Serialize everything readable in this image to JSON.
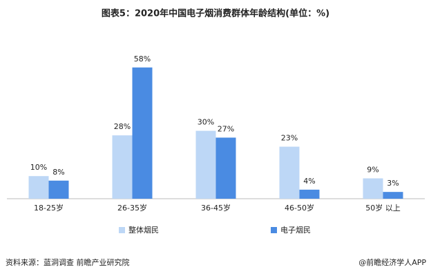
{
  "chart_data": {
    "type": "bar",
    "title": "图表5：2020年中国电子烟消费群体年龄结构(单位：%)",
    "categories": [
      "18-25岁",
      "26-35岁",
      "36-45岁",
      "46-50岁",
      "50岁 以上"
    ],
    "series": [
      {
        "name": "整体烟民",
        "color": "#bdd7f6",
        "values": [
          10,
          28,
          30,
          23,
          9
        ],
        "value_labels": [
          "10%",
          "28%",
          "30%",
          "23%",
          "9%"
        ]
      },
      {
        "name": "电子烟民",
        "color": "#4a8be2",
        "values": [
          8,
          58,
          27,
          4,
          3
        ],
        "value_labels": [
          "8%",
          "58%",
          "27%",
          "4%",
          "3%"
        ]
      }
    ],
    "source": "资料来源：蓝洞调查 前瞻产业研究院",
    "credit": "@前瞻经济学人APP"
  }
}
